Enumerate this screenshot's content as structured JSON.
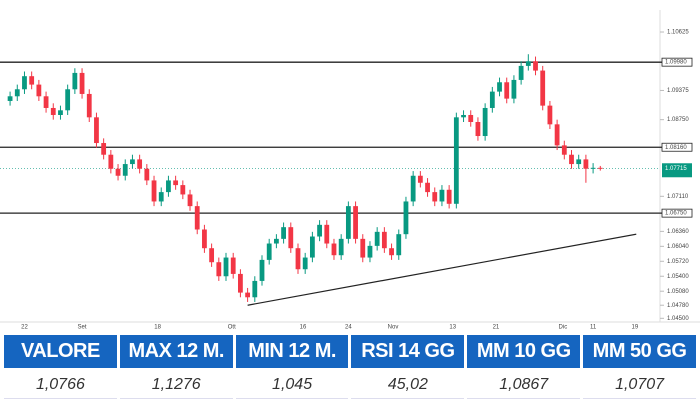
{
  "chart_data": {
    "type": "candlestick",
    "open": [
      1.0915,
      1.0925,
      1.094,
      1.0968,
      1.095,
      1.0925,
      1.09,
      1.0885,
      1.0895,
      1.094,
      1.0975,
      1.093,
      1.088,
      1.0825,
      1.08,
      1.077,
      1.0755,
      1.078,
      1.079,
      1.077,
      1.0745,
      1.07,
      1.072,
      1.0745,
      1.0735,
      1.0715,
      1.069,
      1.064,
      1.06,
      1.057,
      1.054,
      1.058,
      1.0545,
      1.0505,
      1.0495,
      1.053,
      1.0575,
      1.061,
      1.062,
      1.0645,
      1.06,
      1.0555,
      1.058,
      1.0625,
      1.065,
      1.061,
      1.0585,
      1.062,
      1.069,
      1.062,
      1.058,
      1.0605,
      1.0635,
      1.06,
      1.0585,
      1.063,
      1.07,
      1.0755,
      1.074,
      1.072,
      1.07,
      1.0725,
      1.0695,
      1.088,
      1.0885,
      1.087,
      1.084,
      1.09,
      1.0935,
      1.0955,
      1.092,
      1.096,
      1.099,
      1.1,
      1.098,
      1.0905,
      1.0865,
      1.082,
      1.08,
      1.078,
      1.079,
      1.077,
      1.0772
    ],
    "high": [
      1.0935,
      1.095,
      1.0978,
      1.0978,
      1.096,
      1.0935,
      1.091,
      1.0905,
      1.095,
      1.0985,
      1.0985,
      1.094,
      1.089,
      1.0835,
      1.081,
      1.078,
      1.079,
      1.08,
      1.08,
      1.078,
      1.0755,
      1.073,
      1.0755,
      1.0755,
      1.0745,
      1.0725,
      1.07,
      1.065,
      1.061,
      1.058,
      1.059,
      1.059,
      1.0555,
      1.0515,
      1.054,
      1.0585,
      1.062,
      1.063,
      1.0655,
      1.0655,
      1.061,
      1.059,
      1.0635,
      1.066,
      1.066,
      1.062,
      1.063,
      1.07,
      1.07,
      1.063,
      1.0615,
      1.0645,
      1.0645,
      1.061,
      1.064,
      1.071,
      1.0765,
      1.0765,
      1.075,
      1.073,
      1.0735,
      1.0735,
      1.089,
      1.0895,
      1.0895,
      1.088,
      1.091,
      1.0945,
      1.0965,
      1.0965,
      1.097,
      1.1,
      1.1015,
      1.101,
      1.099,
      1.0915,
      1.0875,
      1.083,
      1.081,
      1.08,
      1.08,
      1.0782,
      1.0776
    ],
    "low": [
      1.0905,
      1.0915,
      1.093,
      1.094,
      1.0915,
      1.089,
      1.0875,
      1.0875,
      1.0885,
      1.093,
      1.092,
      1.087,
      1.0815,
      1.079,
      1.076,
      1.0745,
      1.0745,
      1.077,
      1.076,
      1.0735,
      1.069,
      1.069,
      1.071,
      1.0725,
      1.0705,
      1.068,
      1.063,
      1.059,
      1.056,
      1.053,
      1.053,
      1.0535,
      1.0495,
      1.0485,
      1.0485,
      1.052,
      1.0565,
      1.06,
      1.061,
      1.059,
      1.0545,
      1.0545,
      1.057,
      1.0615,
      1.06,
      1.0575,
      1.0575,
      1.061,
      1.061,
      1.057,
      1.057,
      1.0595,
      1.059,
      1.0575,
      1.0575,
      1.062,
      1.069,
      1.073,
      1.071,
      1.069,
      1.069,
      1.0685,
      1.0685,
      1.087,
      1.086,
      1.083,
      1.083,
      1.089,
      1.0925,
      1.091,
      1.091,
      1.095,
      1.098,
      1.097,
      1.0895,
      1.0855,
      1.081,
      1.079,
      1.077,
      1.077,
      1.074,
      1.076,
      1.0766
    ],
    "close": [
      1.0925,
      1.094,
      1.0968,
      1.095,
      1.0925,
      1.09,
      1.0885,
      1.0895,
      1.094,
      1.0975,
      1.093,
      1.088,
      1.0825,
      1.08,
      1.077,
      1.0755,
      1.078,
      1.079,
      1.077,
      1.0745,
      1.07,
      1.072,
      1.0745,
      1.0735,
      1.0715,
      1.069,
      1.064,
      1.06,
      1.057,
      1.054,
      1.058,
      1.0545,
      1.0505,
      1.0495,
      1.053,
      1.0575,
      1.061,
      1.062,
      1.0645,
      1.06,
      1.0555,
      1.058,
      1.0625,
      1.065,
      1.061,
      1.0585,
      1.062,
      1.069,
      1.062,
      1.058,
      1.0605,
      1.0635,
      1.06,
      1.0585,
      1.063,
      1.07,
      1.0755,
      1.074,
      1.072,
      1.07,
      1.0725,
      1.0695,
      1.088,
      1.0885,
      1.087,
      1.084,
      1.09,
      1.0935,
      1.0955,
      1.092,
      1.096,
      1.099,
      1.1,
      1.098,
      1.0905,
      1.0865,
      1.082,
      1.08,
      1.078,
      1.079,
      1.077,
      1.0772,
      1.0771
    ],
    "up_color": "#089981",
    "down_color": "#f23645",
    "xlim": [
      -1.4,
      89.6
    ],
    "xticks": [
      {
        "value": 2,
        "label": "22"
      },
      {
        "value": 10,
        "label": "Set"
      },
      {
        "value": 20.5,
        "label": "18"
      },
      {
        "value": 30.8,
        "label": "Ott"
      },
      {
        "value": 40.7,
        "label": "16"
      },
      {
        "value": 47,
        "label": "24"
      },
      {
        "value": 53.2,
        "label": "Nov"
      },
      {
        "value": 61.5,
        "label": "13"
      },
      {
        "value": 67.5,
        "label": "21"
      },
      {
        "value": 76.8,
        "label": "Dic"
      },
      {
        "value": 81,
        "label": "11"
      },
      {
        "value": 86.8,
        "label": "19"
      }
    ],
    "ylim": [
      1.0425,
      1.1131
    ],
    "yticks": [
      1.10625,
      1.09375,
      {
        "value": 1.0875,
        "label": "1.08750"
      },
      {
        "value": 1.0711,
        "label": "1.07110"
      },
      {
        "value": 1.0636,
        "label": "1.06360"
      },
      {
        "value": 1.0604,
        "label": "1.06040"
      },
      {
        "value": 1.0572,
        "label": "1.05720"
      },
      {
        "value": 1.054,
        "label": "1.05400"
      },
      {
        "value": 1.0508,
        "label": "1.05080"
      },
      {
        "value": 1.0478,
        "label": "1.04780"
      },
      {
        "value": 1.045,
        "label": "1.04500"
      }
    ],
    "levels": [
      {
        "value": 1.0998,
        "label": "1.09980"
      },
      {
        "value": 1.0816,
        "label": "1.08160"
      },
      {
        "value": 1.0675,
        "label": "1.06750"
      }
    ],
    "last_price": {
      "value": 1.0771,
      "label": "1.07715"
    },
    "trendline": {
      "x": [
        33,
        87
      ],
      "y": [
        1.0478,
        1.063
      ]
    }
  },
  "table": {
    "headers": [
      "VALORE",
      "MAX 12 M.",
      "MIN 12 M.",
      "RSI 14 GG",
      "MM 10 GG",
      "MM 50 GG"
    ],
    "values": [
      "1,0766",
      "1,1276",
      "1,045",
      "45,02",
      "1,0867",
      "1,0707"
    ]
  }
}
